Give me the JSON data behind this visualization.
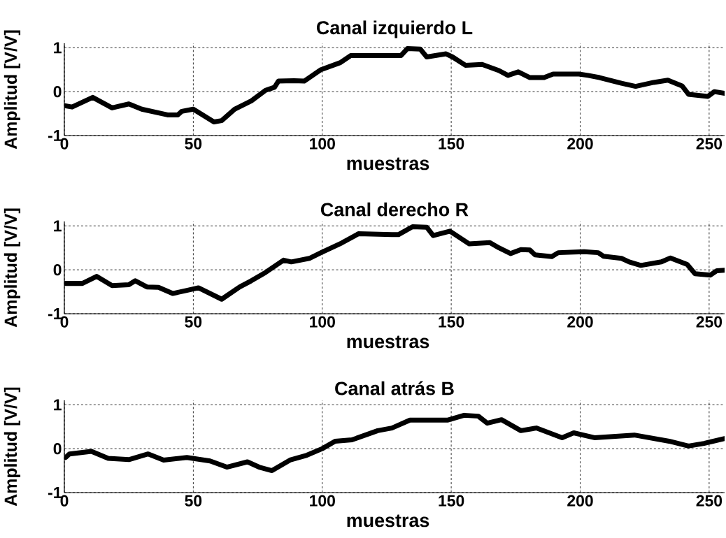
{
  "chart_data": [
    {
      "type": "line",
      "title": "Canal izquierdo L",
      "xlabel": "muestras",
      "ylabel": "Amplitud [V/V]",
      "color": "#000000",
      "grid": true,
      "xlim": [
        0,
        256
      ],
      "ylim": [
        -1,
        1.1
      ],
      "xticks": [
        0,
        50,
        100,
        150,
        200,
        250
      ],
      "yticks": [
        -1,
        0,
        1
      ],
      "x": [
        0,
        3,
        11,
        18.5,
        25,
        30,
        40,
        44,
        45.5,
        50,
        58,
        61,
        66,
        72.5,
        78,
        81.5,
        83,
        89,
        93,
        99.5,
        107,
        111,
        127,
        130.5,
        133,
        138,
        140.5,
        148,
        150.5,
        155.5,
        162,
        168.5,
        172,
        176,
        180.5,
        186,
        189.5,
        199.5,
        203,
        207.5,
        216,
        221.5,
        228.5,
        234,
        239.5,
        242,
        249.5,
        252,
        256
      ],
      "values": [
        -0.32,
        -0.35,
        -0.13,
        -0.37,
        -0.28,
        -0.4,
        -0.53,
        -0.53,
        -0.45,
        -0.4,
        -0.69,
        -0.66,
        -0.4,
        -0.21,
        0.03,
        0.1,
        0.24,
        0.25,
        0.24,
        0.5,
        0.66,
        0.82,
        0.82,
        0.82,
        0.98,
        0.97,
        0.79,
        0.86,
        0.79,
        0.6,
        0.62,
        0.48,
        0.37,
        0.45,
        0.32,
        0.32,
        0.4,
        0.4,
        0.37,
        0.32,
        0.19,
        0.12,
        0.21,
        0.26,
        0.13,
        -0.06,
        -0.11,
        0,
        -0.04
      ]
    },
    {
      "type": "line",
      "title": "Canal derecho R",
      "xlabel": "muestras",
      "ylabel": "Amplitud [V/V]",
      "color": "#000000",
      "grid": true,
      "xlim": [
        0,
        256
      ],
      "ylim": [
        -1,
        1.1
      ],
      "xticks": [
        0,
        50,
        100,
        150,
        200,
        250
      ],
      "yticks": [
        -1,
        0,
        1
      ],
      "x": [
        0,
        7,
        12.5,
        18.5,
        25,
        27.5,
        32,
        36.5,
        42,
        47.5,
        52,
        61,
        68,
        72.5,
        78,
        85,
        88,
        95,
        99.5,
        107.5,
        114,
        127,
        129.5,
        135,
        140.5,
        143,
        149.5,
        157,
        165,
        168.5,
        173,
        177,
        180.5,
        182.5,
        189,
        191.5,
        201.5,
        207,
        209,
        216,
        219,
        223.5,
        231.5,
        235,
        241.5,
        244.5,
        250.5,
        253,
        256
      ],
      "values": [
        -0.31,
        -0.31,
        -0.15,
        -0.36,
        -0.34,
        -0.25,
        -0.39,
        -0.4,
        -0.54,
        -0.47,
        -0.41,
        -0.67,
        -0.39,
        -0.25,
        -0.06,
        0.22,
        0.18,
        0.26,
        0.39,
        0.61,
        0.82,
        0.8,
        0.8,
        0.98,
        0.97,
        0.78,
        0.88,
        0.59,
        0.62,
        0.5,
        0.37,
        0.46,
        0.45,
        0.34,
        0.3,
        0.39,
        0.41,
        0.39,
        0.31,
        0.26,
        0.18,
        0.1,
        0.18,
        0.27,
        0.12,
        -0.09,
        -0.12,
        -0.02,
        -0.01
      ]
    },
    {
      "type": "line",
      "title": "Canal atrás B",
      "xlabel": "muestras",
      "ylabel": "Amplitud [V/V]",
      "color": "#000000",
      "grid": true,
      "xlim": [
        0,
        256
      ],
      "ylim": [
        -1,
        1.1
      ],
      "xticks": [
        0,
        50,
        100,
        150,
        200,
        250
      ],
      "yticks": [
        -1,
        0,
        1
      ],
      "x": [
        0.5,
        2,
        10.5,
        17,
        25,
        32.5,
        38.5,
        47.5,
        56.5,
        63,
        71,
        75.5,
        80.5,
        87.5,
        94,
        100,
        105,
        111.5,
        121.5,
        127,
        134,
        148.5,
        155,
        160.5,
        164,
        169.5,
        177,
        183,
        193,
        197.5,
        205.5,
        221,
        234.5,
        242,
        248,
        256
      ],
      "values": [
        -0.2,
        -0.12,
        -0.06,
        -0.22,
        -0.25,
        -0.12,
        -0.26,
        -0.2,
        -0.28,
        -0.42,
        -0.3,
        -0.42,
        -0.5,
        -0.26,
        -0.15,
        0,
        0.17,
        0.2,
        0.41,
        0.47,
        0.65,
        0.65,
        0.76,
        0.74,
        0.58,
        0.66,
        0.41,
        0.47,
        0.25,
        0.36,
        0.25,
        0.31,
        0.17,
        0.06,
        0.12,
        0.23
      ]
    }
  ]
}
